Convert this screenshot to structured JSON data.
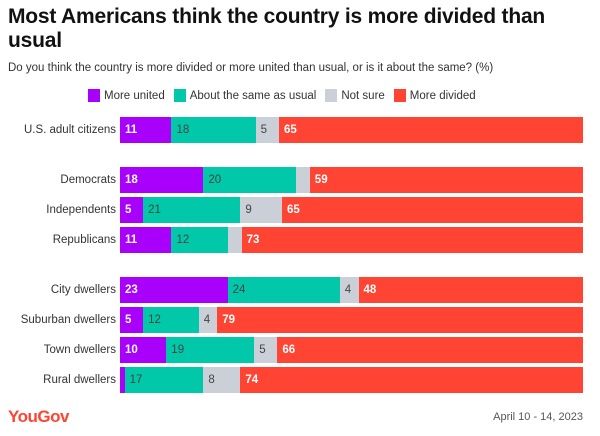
{
  "chart_data": {
    "type": "bar",
    "orientation": "horizontal",
    "stacked": true,
    "title": "Most Americans think the country is more divided than usual",
    "subtitle": "Do you think the country is more divided or more united than usual, or is it about the same? (%)",
    "legend_position": "top",
    "series": [
      {
        "name": "More united",
        "color": "#A800FA",
        "label_style": "light"
      },
      {
        "name": "About the same as usual",
        "color": "#00C8A8",
        "label_style": "dark"
      },
      {
        "name": "Not sure",
        "color": "#CBCFD8",
        "label_style": "dark"
      },
      {
        "name": "More divided",
        "color": "#FF4433",
        "label_style": "light"
      }
    ],
    "groups": [
      {
        "rows": [
          {
            "category": "U.S. adult citizens",
            "values": [
              11,
              18,
              5,
              65
            ],
            "labels": [
              "11",
              "18",
              "5",
              "65"
            ]
          }
        ]
      },
      {
        "rows": [
          {
            "category": "Democrats",
            "values": [
              18,
              20,
              3,
              59
            ],
            "labels": [
              "18",
              "20",
              "",
              "59"
            ]
          },
          {
            "category": "Independents",
            "values": [
              5,
              21,
              9,
              65
            ],
            "labels": [
              "5",
              "21",
              "9",
              "65"
            ]
          },
          {
            "category": "Republicans",
            "values": [
              11,
              12,
              3,
              73
            ],
            "labels": [
              "11",
              "12",
              "",
              "73"
            ]
          }
        ]
      },
      {
        "rows": [
          {
            "category": "City dwellers",
            "values": [
              23,
              24,
              4,
              48
            ],
            "labels": [
              "23",
              "24",
              "4",
              "48"
            ]
          },
          {
            "category": "Suburban dwellers",
            "values": [
              5,
              12,
              4,
              79
            ],
            "labels": [
              "5",
              "12",
              "4",
              "79"
            ]
          },
          {
            "category": "Town dwellers",
            "values": [
              10,
              19,
              5,
              66
            ],
            "labels": [
              "10",
              "19",
              "5",
              "66"
            ]
          },
          {
            "category": "Rural dwellers",
            "values": [
              1,
              17,
              8,
              74
            ],
            "labels": [
              "",
              "17",
              "8",
              "74"
            ]
          }
        ]
      }
    ],
    "xlabel": "",
    "ylabel": "",
    "grid": false
  },
  "footer": {
    "brand": "YouGov",
    "date": "April 10 - 14, 2023"
  }
}
